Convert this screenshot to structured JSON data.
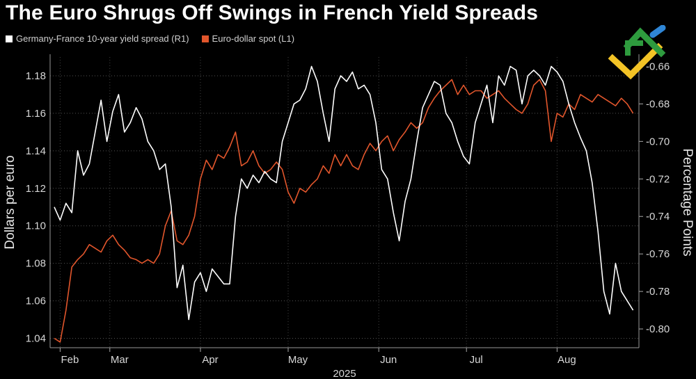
{
  "title": "The Euro Shrugs Off Swings in French Yield Spreads",
  "legend": [
    {
      "label": "Germany-France 10-year yield spread (R1)",
      "color": "#ffffff"
    },
    {
      "label": "Euro-dollar spot (L1)",
      "color": "#e2562c"
    }
  ],
  "chart_data": {
    "type": "line",
    "title": "The Euro Shrugs Off Swings in French Yield Spreads",
    "xlabel": "2025",
    "ylabel_left": "Dollars per euro",
    "ylabel_right": "Percentage Points",
    "ylim_left": [
      1.035,
      1.19
    ],
    "ylim_right": [
      -0.81,
      -0.655
    ],
    "left_ticks": [
      "1.18",
      "1.16",
      "1.14",
      "1.12",
      "1.10",
      "1.08",
      "1.06",
      "1.04"
    ],
    "left_tick_values": [
      1.18,
      1.16,
      1.14,
      1.12,
      1.1,
      1.08,
      1.06,
      1.04
    ],
    "right_ticks": [
      "-0.66",
      "-0.68",
      "-0.70",
      "-0.72",
      "-0.74",
      "-0.76",
      "-0.78",
      "-0.80"
    ],
    "right_tick_values": [
      -0.66,
      -0.68,
      -0.7,
      -0.72,
      -0.74,
      -0.76,
      -0.78,
      -0.8
    ],
    "x_domain": [
      0,
      200
    ],
    "months": [
      {
        "label": "Feb",
        "x": 2
      },
      {
        "label": "Mar",
        "x": 19
      },
      {
        "label": "Apr",
        "x": 50
      },
      {
        "label": "May",
        "x": 80
      },
      {
        "label": "Jun",
        "x": 111
      },
      {
        "label": "Jul",
        "x": 141
      },
      {
        "label": "Aug",
        "x": 172
      }
    ],
    "grid": true,
    "series": [
      {
        "name": "Euro-dollar spot (L1)",
        "axis": "left",
        "color": "#e2562c",
        "x": [
          0,
          2,
          4,
          6,
          8,
          10,
          12,
          14,
          16,
          18,
          20,
          22,
          24,
          26,
          28,
          30,
          32,
          34,
          36,
          38,
          40,
          42,
          44,
          46,
          48,
          50,
          52,
          54,
          56,
          58,
          60,
          62,
          64,
          66,
          68,
          70,
          72,
          74,
          76,
          78,
          80,
          82,
          84,
          86,
          88,
          90,
          92,
          94,
          96,
          98,
          100,
          102,
          104,
          106,
          108,
          110,
          112,
          114,
          116,
          118,
          120,
          122,
          124,
          126,
          128,
          130,
          132,
          134,
          136,
          138,
          140,
          142,
          144,
          146,
          148,
          150,
          152,
          154,
          156,
          158,
          160,
          162,
          164,
          166,
          168,
          170,
          172,
          174,
          176,
          178,
          180,
          182,
          184,
          186,
          188,
          190,
          192,
          194,
          196,
          198
        ],
        "values": [
          1.04,
          1.038,
          1.055,
          1.078,
          1.082,
          1.085,
          1.09,
          1.088,
          1.086,
          1.092,
          1.095,
          1.09,
          1.087,
          1.083,
          1.082,
          1.08,
          1.082,
          1.08,
          1.085,
          1.1,
          1.108,
          1.092,
          1.09,
          1.095,
          1.105,
          1.125,
          1.135,
          1.13,
          1.138,
          1.136,
          1.142,
          1.15,
          1.132,
          1.134,
          1.14,
          1.132,
          1.128,
          1.13,
          1.134,
          1.13,
          1.118,
          1.112,
          1.12,
          1.118,
          1.122,
          1.125,
          1.132,
          1.128,
          1.138,
          1.132,
          1.138,
          1.132,
          1.13,
          1.138,
          1.144,
          1.14,
          1.145,
          1.148,
          1.14,
          1.146,
          1.15,
          1.155,
          1.152,
          1.155,
          1.163,
          1.168,
          1.172,
          1.175,
          1.178,
          1.17,
          1.175,
          1.17,
          1.172,
          1.172,
          1.168,
          1.17,
          1.172,
          1.168,
          1.165,
          1.162,
          1.16,
          1.165,
          1.175,
          1.178,
          1.172,
          1.145,
          1.16,
          1.158,
          1.165,
          1.162,
          1.17,
          1.168,
          1.166,
          1.17,
          1.168,
          1.166,
          1.164,
          1.168,
          1.165,
          1.16
        ]
      },
      {
        "name": "Germany-France 10-year yield spread (R1)",
        "axis": "right",
        "color": "#ffffff",
        "x": [
          0,
          2,
          4,
          6,
          8,
          10,
          12,
          14,
          16,
          18,
          20,
          22,
          24,
          26,
          28,
          30,
          32,
          34,
          36,
          38,
          40,
          42,
          44,
          46,
          48,
          50,
          52,
          54,
          56,
          58,
          60,
          62,
          64,
          66,
          68,
          70,
          72,
          74,
          76,
          78,
          80,
          82,
          84,
          86,
          88,
          90,
          92,
          94,
          96,
          98,
          100,
          102,
          104,
          106,
          108,
          110,
          112,
          114,
          116,
          118,
          120,
          122,
          124,
          126,
          128,
          130,
          132,
          134,
          136,
          138,
          140,
          142,
          144,
          146,
          148,
          150,
          152,
          154,
          156,
          158,
          160,
          162,
          164,
          166,
          168,
          170,
          172,
          174,
          176,
          178,
          180,
          182,
          184,
          186,
          188,
          190,
          192,
          194,
          196,
          198
        ],
        "values": [
          -0.735,
          -0.742,
          -0.733,
          -0.738,
          -0.705,
          -0.718,
          -0.712,
          -0.695,
          -0.678,
          -0.7,
          -0.684,
          -0.675,
          -0.695,
          -0.69,
          -0.682,
          -0.688,
          -0.7,
          -0.705,
          -0.715,
          -0.712,
          -0.735,
          -0.778,
          -0.766,
          -0.795,
          -0.775,
          -0.77,
          -0.78,
          -0.768,
          -0.772,
          -0.776,
          -0.776,
          -0.74,
          -0.72,
          -0.725,
          -0.718,
          -0.722,
          -0.716,
          -0.72,
          -0.722,
          -0.7,
          -0.69,
          -0.68,
          -0.678,
          -0.672,
          -0.66,
          -0.668,
          -0.685,
          -0.7,
          -0.672,
          -0.665,
          -0.668,
          -0.663,
          -0.672,
          -0.67,
          -0.675,
          -0.69,
          -0.715,
          -0.72,
          -0.738,
          -0.753,
          -0.732,
          -0.72,
          -0.7,
          -0.682,
          -0.675,
          -0.668,
          -0.67,
          -0.685,
          -0.69,
          -0.7,
          -0.708,
          -0.712,
          -0.69,
          -0.68,
          -0.67,
          -0.69,
          -0.665,
          -0.67,
          -0.66,
          -0.662,
          -0.68,
          -0.665,
          -0.662,
          -0.665,
          -0.67,
          -0.66,
          -0.663,
          -0.668,
          -0.68,
          -0.69,
          -0.698,
          -0.705,
          -0.722,
          -0.748,
          -0.78,
          -0.792,
          -0.765,
          -0.78,
          -0.785,
          -0.79
        ]
      }
    ]
  }
}
